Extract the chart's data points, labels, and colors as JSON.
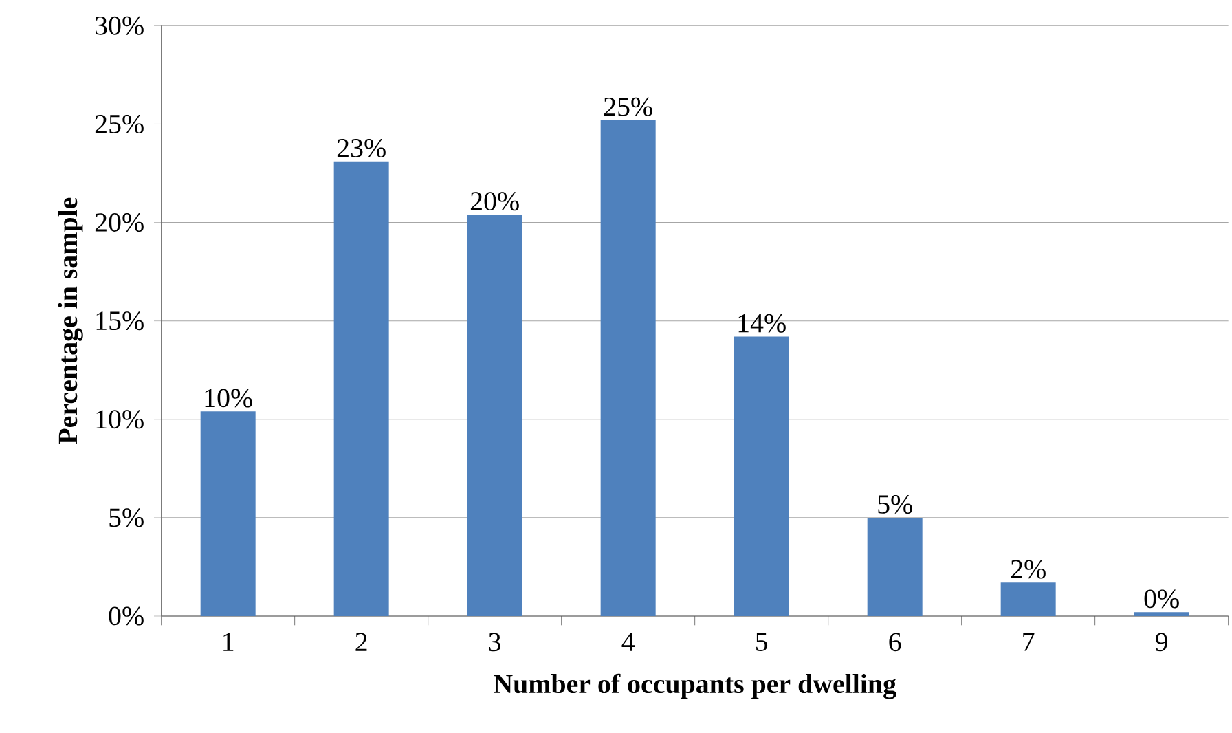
{
  "chart_data": {
    "type": "bar",
    "xlabel": "Number of occupants per dwelling",
    "ylabel": "Percentage in sample",
    "categories": [
      "1",
      "2",
      "3",
      "4",
      "5",
      "6",
      "7",
      "9"
    ],
    "values": [
      10.4,
      23.1,
      20.4,
      25.2,
      14.2,
      5.0,
      1.7,
      0.2
    ],
    "value_labels": [
      "10%",
      "23%",
      "20%",
      "25%",
      "14%",
      "5%",
      "2%",
      "0%"
    ],
    "color": "#4f81bd",
    "ylim": [
      0,
      30
    ],
    "yticks": [
      {
        "value": 0,
        "label": "0%"
      },
      {
        "value": 5,
        "label": "5%"
      },
      {
        "value": 10,
        "label": "10%"
      },
      {
        "value": 15,
        "label": "15%"
      },
      {
        "value": 20,
        "label": "20%"
      },
      {
        "value": 25,
        "label": "25%"
      },
      {
        "value": 30,
        "label": "30%"
      }
    ],
    "grid": "y"
  }
}
